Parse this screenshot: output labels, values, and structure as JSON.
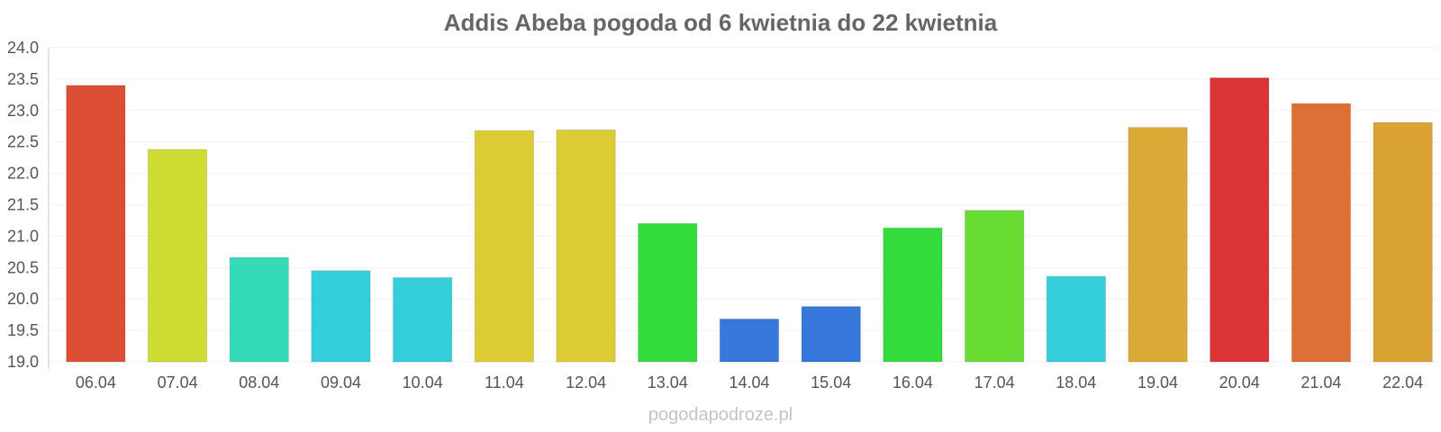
{
  "chart_data": {
    "type": "bar",
    "title": "Addis Abeba pogoda od 6 kwietnia do 22 kwietnia",
    "xlabel": "",
    "ylabel": "",
    "categories": [
      "06.04",
      "07.04",
      "08.04",
      "09.04",
      "10.04",
      "11.04",
      "12.04",
      "13.04",
      "14.04",
      "15.04",
      "16.04",
      "17.04",
      "18.04",
      "19.04",
      "20.04",
      "21.04",
      "22.04"
    ],
    "values": [
      23.4,
      22.38,
      20.66,
      20.45,
      20.34,
      22.68,
      22.69,
      21.2,
      19.68,
      19.88,
      21.13,
      21.41,
      20.36,
      22.73,
      23.52,
      23.11,
      22.81
    ],
    "colors": [
      "#dd4f35",
      "#cfdc33",
      "#35dbb8",
      "#35cfdb",
      "#35cfdb",
      "#dbcb35",
      "#dbcb35",
      "#33dd3c",
      "#3577db",
      "#3577db",
      "#33dd3c",
      "#69dd35",
      "#35cfdb",
      "#dba935",
      "#dc3435",
      "#dd7135",
      "#dba335"
    ],
    "ylim": [
      19.0,
      24.0
    ],
    "yticks": [
      "19.0",
      "19.5",
      "20.0",
      "20.5",
      "21.0",
      "21.5",
      "22.0",
      "22.5",
      "23.0",
      "23.5",
      "24.0"
    ],
    "grid": true,
    "legend": "none"
  },
  "watermark": "pogodapodroze.pl"
}
